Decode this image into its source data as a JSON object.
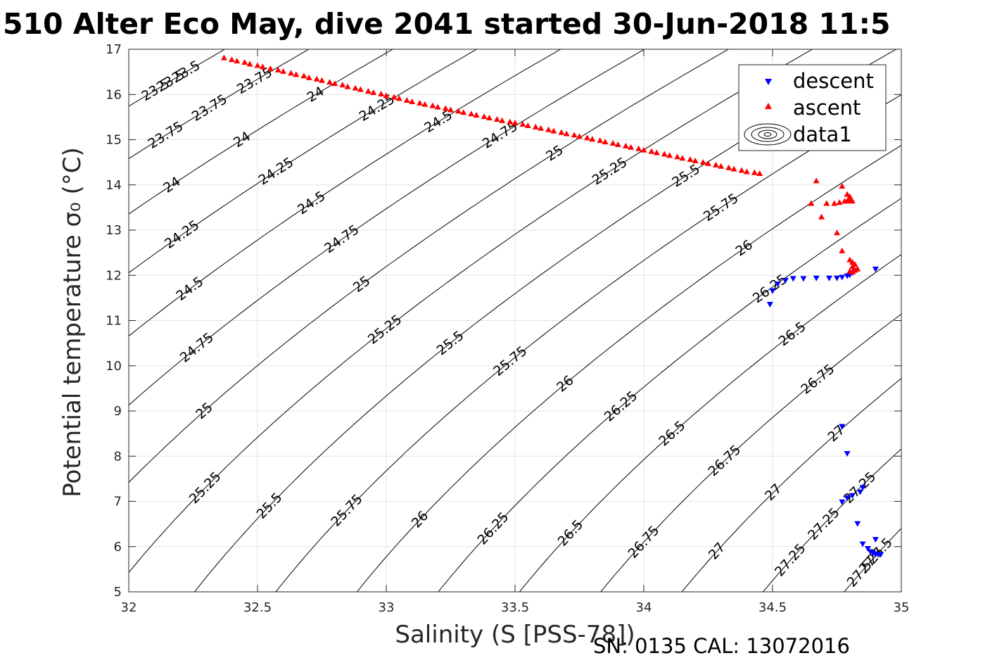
{
  "figure": {
    "title": "510 Alter Eco May, dive 2041 started 30-Jun-2018 11:5",
    "footer": "SN: 0135  CAL: 13072016"
  },
  "chart_data": {
    "type": "scatter",
    "title": "510 Alter Eco May, dive 2041 started 30-Jun-2018 11:5",
    "xlabel": "Salinity (S [PSS-78])",
    "ylabel": "Potential temperature σ₀ (°C)",
    "xlim": [
      32,
      35
    ],
    "ylim": [
      5,
      17
    ],
    "xticks": [
      32,
      32.5,
      33,
      33.5,
      34,
      34.5,
      35
    ],
    "yticks": [
      5,
      6,
      7,
      8,
      9,
      10,
      11,
      12,
      13,
      14,
      15,
      16,
      17
    ],
    "grid": true,
    "legend_position": "top-right",
    "series": [
      {
        "name": "descent",
        "marker": "down-triangle",
        "color": "#0000ff",
        "points": [
          [
            34.49,
            11.35
          ],
          [
            34.5,
            11.65
          ],
          [
            34.52,
            11.8
          ],
          [
            34.55,
            11.88
          ],
          [
            34.58,
            11.92
          ],
          [
            34.62,
            11.92
          ],
          [
            34.67,
            11.93
          ],
          [
            34.72,
            11.93
          ],
          [
            34.75,
            11.93
          ],
          [
            34.77,
            11.95
          ],
          [
            34.79,
            11.98
          ],
          [
            34.8,
            12.0
          ],
          [
            34.81,
            12.05
          ],
          [
            34.82,
            12.1
          ],
          [
            34.9,
            12.13
          ],
          [
            34.77,
            8.65
          ],
          [
            34.79,
            8.05
          ],
          [
            34.77,
            6.98
          ],
          [
            34.79,
            7.07
          ],
          [
            34.81,
            7.12
          ],
          [
            34.84,
            7.2
          ],
          [
            34.85,
            7.3
          ],
          [
            34.83,
            6.5
          ],
          [
            34.85,
            6.05
          ],
          [
            34.87,
            5.95
          ],
          [
            34.88,
            5.88
          ],
          [
            34.89,
            5.85
          ],
          [
            34.9,
            5.82
          ],
          [
            34.91,
            5.82
          ],
          [
            34.92,
            5.82
          ],
          [
            34.9,
            6.15
          ]
        ]
      },
      {
        "name": "ascent",
        "marker": "up-triangle",
        "color": "#ff0000",
        "points": [
          [
            32.37,
            16.82
          ],
          [
            32.4,
            16.78
          ],
          [
            32.42,
            16.75
          ],
          [
            32.45,
            16.72
          ],
          [
            32.47,
            16.68
          ],
          [
            32.5,
            16.65
          ],
          [
            32.52,
            16.62
          ],
          [
            32.55,
            16.58
          ],
          [
            32.58,
            16.55
          ],
          [
            32.6,
            16.52
          ],
          [
            32.63,
            16.48
          ],
          [
            32.65,
            16.45
          ],
          [
            32.68,
            16.42
          ],
          [
            32.7,
            16.38
          ],
          [
            32.73,
            16.35
          ],
          [
            32.75,
            16.32
          ],
          [
            32.78,
            16.28
          ],
          [
            32.8,
            16.25
          ],
          [
            32.83,
            16.22
          ],
          [
            32.85,
            16.18
          ],
          [
            32.88,
            16.15
          ],
          [
            32.9,
            16.12
          ],
          [
            32.93,
            16.08
          ],
          [
            32.95,
            16.05
          ],
          [
            32.98,
            16.02
          ],
          [
            33.0,
            15.98
          ],
          [
            33.03,
            15.95
          ],
          [
            33.05,
            15.92
          ],
          [
            33.08,
            15.88
          ],
          [
            33.1,
            15.85
          ],
          [
            33.13,
            15.82
          ],
          [
            33.15,
            15.79
          ],
          [
            33.18,
            15.76
          ],
          [
            33.2,
            15.73
          ],
          [
            33.23,
            15.7
          ],
          [
            33.25,
            15.67
          ],
          [
            33.28,
            15.64
          ],
          [
            33.3,
            15.61
          ],
          [
            33.33,
            15.58
          ],
          [
            33.35,
            15.55
          ],
          [
            33.38,
            15.52
          ],
          [
            33.4,
            15.49
          ],
          [
            33.43,
            15.46
          ],
          [
            33.45,
            15.43
          ],
          [
            33.48,
            15.4
          ],
          [
            33.5,
            15.38
          ],
          [
            33.53,
            15.35
          ],
          [
            33.55,
            15.32
          ],
          [
            33.58,
            15.29
          ],
          [
            33.6,
            15.26
          ],
          [
            33.63,
            15.23
          ],
          [
            33.65,
            15.2
          ],
          [
            33.68,
            15.17
          ],
          [
            33.7,
            15.14
          ],
          [
            33.73,
            15.11
          ],
          [
            33.75,
            15.08
          ],
          [
            33.78,
            15.05
          ],
          [
            33.8,
            15.02
          ],
          [
            33.83,
            14.99
          ],
          [
            33.85,
            14.96
          ],
          [
            33.88,
            14.93
          ],
          [
            33.9,
            14.9
          ],
          [
            33.93,
            14.87
          ],
          [
            33.95,
            14.84
          ],
          [
            33.98,
            14.81
          ],
          [
            34.0,
            14.78
          ],
          [
            34.03,
            14.75
          ],
          [
            34.05,
            14.72
          ],
          [
            34.08,
            14.69
          ],
          [
            34.1,
            14.66
          ],
          [
            34.13,
            14.63
          ],
          [
            34.15,
            14.6
          ],
          [
            34.18,
            14.57
          ],
          [
            34.2,
            14.54
          ],
          [
            34.23,
            14.51
          ],
          [
            34.25,
            14.48
          ],
          [
            34.28,
            14.45
          ],
          [
            34.3,
            14.42
          ],
          [
            34.33,
            14.39
          ],
          [
            34.35,
            14.36
          ],
          [
            34.38,
            14.33
          ],
          [
            34.4,
            14.3
          ],
          [
            34.43,
            14.28
          ],
          [
            34.45,
            14.26
          ],
          [
            34.65,
            13.6
          ],
          [
            34.67,
            14.1
          ],
          [
            34.69,
            13.3
          ],
          [
            34.71,
            13.6
          ],
          [
            34.74,
            13.6
          ],
          [
            34.76,
            13.62
          ],
          [
            34.77,
            13.98
          ],
          [
            34.78,
            13.65
          ],
          [
            34.79,
            13.65
          ],
          [
            34.8,
            13.68
          ],
          [
            34.81,
            13.65
          ],
          [
            34.8,
            13.75
          ],
          [
            34.79,
            13.8
          ],
          [
            34.75,
            12.95
          ],
          [
            34.77,
            12.55
          ],
          [
            34.8,
            12.35
          ],
          [
            34.81,
            12.3
          ],
          [
            34.82,
            12.25
          ],
          [
            34.81,
            12.2
          ],
          [
            34.82,
            12.12
          ],
          [
            34.83,
            12.15
          ],
          [
            34.8,
            12.1
          ],
          [
            34.81,
            12.08
          ]
        ]
      }
    ],
    "contour_labels": [
      "23.5",
      "23.75",
      "24",
      "24.25",
      "24.5",
      "24.75",
      "25",
      "25.25",
      "25.5",
      "25.75",
      "26",
      "26.25",
      "26.5",
      "26.75",
      "27",
      "27.25",
      "27.5"
    ],
    "legend": [
      "descent",
      "ascent",
      "data1"
    ]
  }
}
